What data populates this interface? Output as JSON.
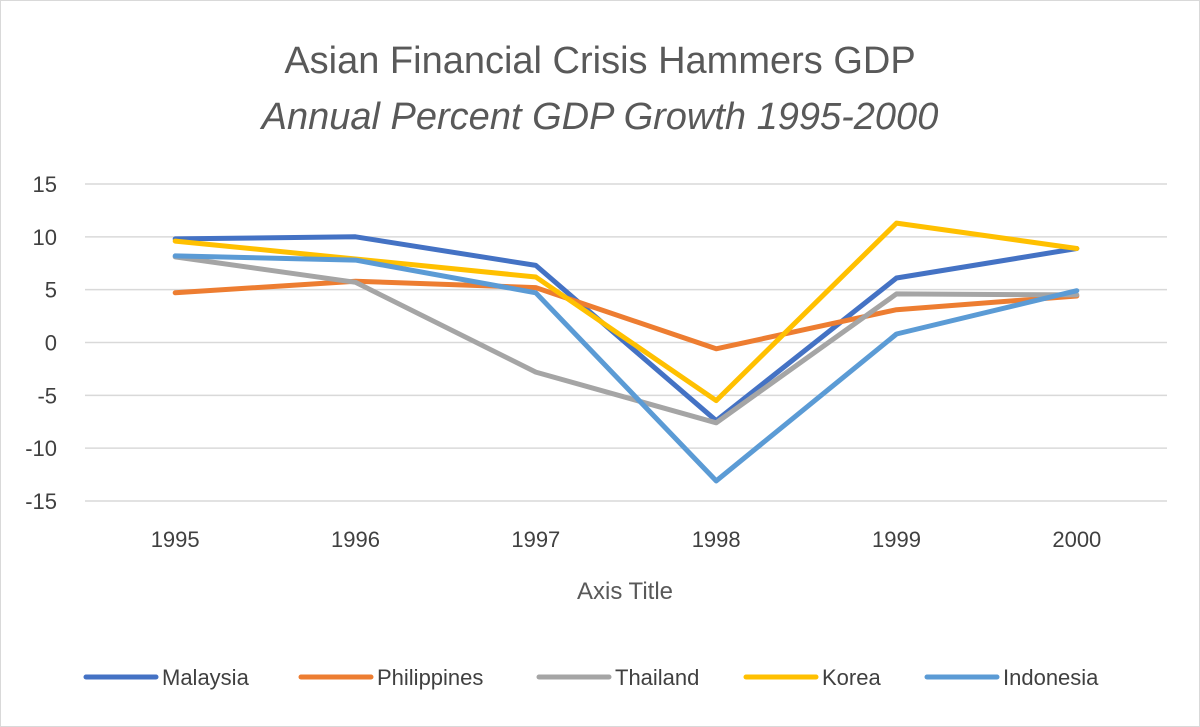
{
  "chart_data": {
    "type": "line",
    "title": "Asian Financial Crisis Hammers GDP",
    "subtitle": "Annual  Percent GDP Growth 1995-2000",
    "xlabel": "Axis Title",
    "ylabel": "",
    "categories": [
      "1995",
      "1996",
      "1997",
      "1998",
      "1999",
      "2000"
    ],
    "ylim": [
      -15,
      15
    ],
    "yticks": [
      15,
      10,
      5,
      0,
      -5,
      -10,
      -15
    ],
    "ytick_labels": [
      "15",
      "10",
      "5",
      "0",
      "-5",
      "-10",
      "-15"
    ],
    "grid": true,
    "legend_position": "bottom",
    "series": [
      {
        "name": "Malaysia",
        "color": "#4472C4",
        "values": [
          9.8,
          10.0,
          7.3,
          -7.4,
          6.1,
          8.9
        ]
      },
      {
        "name": "Philippines",
        "color": "#ED7D31",
        "values": [
          4.7,
          5.8,
          5.2,
          -0.6,
          3.1,
          4.4
        ]
      },
      {
        "name": "Thailand",
        "color": "#A5A5A5",
        "values": [
          8.1,
          5.7,
          -2.8,
          -7.6,
          4.6,
          4.5
        ]
      },
      {
        "name": "Korea",
        "color": "#FFC000",
        "values": [
          9.6,
          7.9,
          6.2,
          -5.5,
          11.3,
          8.9
        ]
      },
      {
        "name": "Indonesia",
        "color": "#5B9BD5",
        "values": [
          8.2,
          7.8,
          4.7,
          -13.1,
          0.8,
          4.9
        ]
      }
    ]
  }
}
